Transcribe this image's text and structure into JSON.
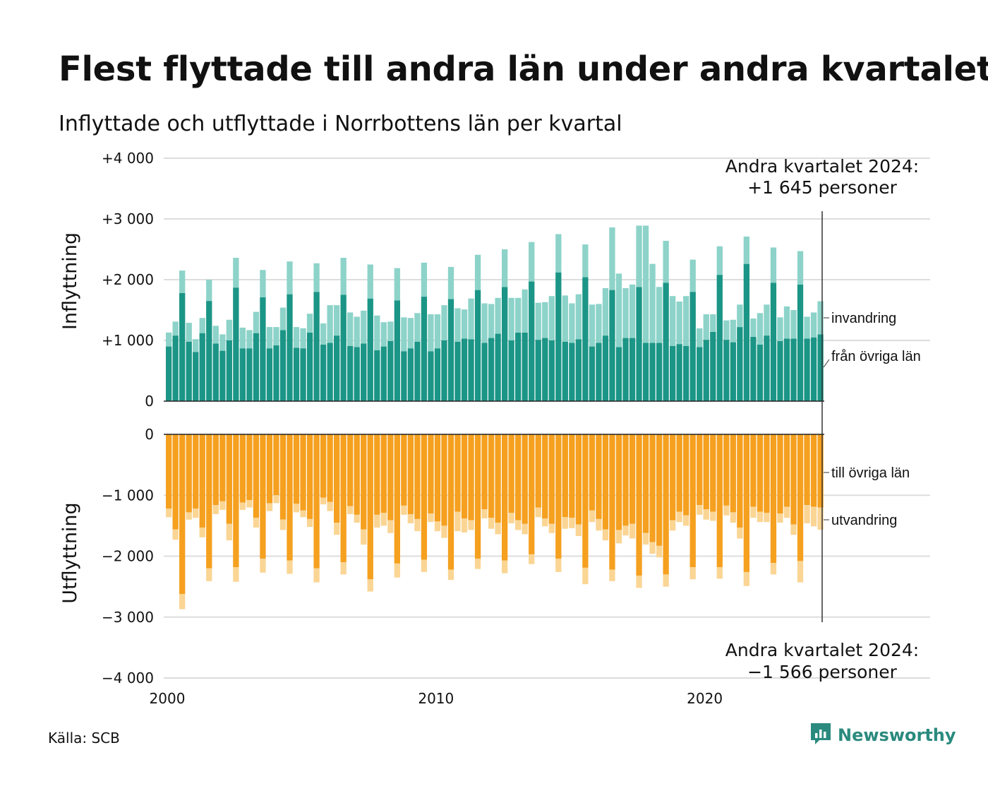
{
  "title": "Flest flyttade till andra län under andra kvartalet",
  "subtitle": "Inflyttade och utflyttade i Norrbottens län per kvartal",
  "source": "Källa: SCB",
  "brand": "Newsworthy",
  "colors": {
    "inflytt_ovriga": "#1b9586",
    "invandring": "#8dd3c9",
    "utflytt_ovriga": "#f5a01f",
    "utvandring": "#fad594",
    "gridline": "#dddddd"
  },
  "chart_data": {
    "type": "bar",
    "stacked": true,
    "x_start": "2000 Q1",
    "x_end": "2024 Q2",
    "x_ticks": [
      "2000",
      "2010",
      "2020"
    ],
    "panels": [
      {
        "axis_title": "Inflyttning",
        "ylim": [
          0,
          4000
        ],
        "y_ticks": [
          0,
          1000,
          2000,
          3000,
          4000
        ],
        "y_tick_labels": [
          "0",
          "+1 000",
          "+2 000",
          "+3 000",
          "+4 000"
        ],
        "annotation": [
          "Andra kvartalet 2024:",
          "+1 645 personer"
        ],
        "series": [
          {
            "name": "från övriga län",
            "values": [
              900,
              1080,
              1780,
              980,
              810,
              1120,
              1650,
              950,
              830,
              1000,
              1870,
              870,
              870,
              1120,
              1710,
              870,
              920,
              1170,
              1760,
              880,
              870,
              1130,
              1800,
              930,
              960,
              1080,
              1750,
              910,
              890,
              950,
              1690,
              840,
              900,
              990,
              1660,
              820,
              870,
              980,
              1720,
              820,
              870,
              1000,
              1680,
              980,
              1030,
              1020,
              1830,
              960,
              1040,
              1110,
              1880,
              1000,
              1130,
              1130,
              1970,
              1010,
              1040,
              1000,
              2120,
              980,
              960,
              1020,
              2040,
              900,
              960,
              1080,
              1830,
              890,
              1040,
              1040,
              1880,
              960,
              960,
              960,
              1950,
              910,
              940,
              910,
              1800,
              890,
              1010,
              1140,
              2080,
              1010,
              970,
              1220,
              2260,
              1060,
              930,
              1080,
              1950,
              990,
              1030,
              1030,
              1920,
              1030,
              1050,
              1100
            ]
          },
          {
            "name": "invandring",
            "values": [
              230,
              230,
              370,
              310,
              210,
              250,
              350,
              290,
              270,
              340,
              490,
              340,
              300,
              350,
              450,
              350,
              300,
              370,
              540,
              340,
              330,
              310,
              470,
              350,
              620,
              500,
              610,
              550,
              500,
              540,
              560,
              570,
              400,
              320,
              530,
              560,
              500,
              470,
              560,
              610,
              560,
              580,
              530,
              550,
              480,
              670,
              580,
              650,
              560,
              590,
              620,
              700,
              570,
              710,
              650,
              610,
              590,
              730,
              630,
              760,
              650,
              740,
              540,
              690,
              640,
              780,
              1030,
              1210,
              820,
              880,
              1010,
              1930,
              1300,
              920,
              690,
              820,
              700,
              820,
              530,
              310,
              420,
              290,
              470,
              320,
              370,
              370,
              450,
              300,
              520,
              510,
              580,
              390,
              530,
              470,
              550,
              360,
              410,
              545
            ]
          }
        ]
      },
      {
        "axis_title": "Utflyttning",
        "ylim": [
          -4000,
          0
        ],
        "y_ticks": [
          0,
          -1000,
          -2000,
          -3000,
          -4000
        ],
        "y_tick_labels": [
          "0",
          "−1 000",
          "−2 000",
          "−3 000",
          "−4 000"
        ],
        "annotation": [
          "Andra kvartalet 2024:",
          "−1 566 personer"
        ],
        "series": [
          {
            "name": "till övriga län",
            "values": [
              -1220,
              -1560,
              -2620,
              -1280,
              -1220,
              -1530,
              -2200,
              -1160,
              -1100,
              -1470,
              -2180,
              -1120,
              -1080,
              -1370,
              -2040,
              -1130,
              -1000,
              -1400,
              -2070,
              -1140,
              -1250,
              -1390,
              -2200,
              -1040,
              -1110,
              -1450,
              -2100,
              -1180,
              -1320,
              -1560,
              -2380,
              -1320,
              -1290,
              -1410,
              -2120,
              -1170,
              -1310,
              -1390,
              -2060,
              -1300,
              -1430,
              -1500,
              -2220,
              -1270,
              -1380,
              -1410,
              -2040,
              -1230,
              -1370,
              -1450,
              -2070,
              -1290,
              -1410,
              -1470,
              -1970,
              -1200,
              -1380,
              -1470,
              -2040,
              -1360,
              -1370,
              -1480,
              -2190,
              -1250,
              -1390,
              -1560,
              -2220,
              -1570,
              -1500,
              -1470,
              -2320,
              -1620,
              -1770,
              -1830,
              -2300,
              -1410,
              -1270,
              -1330,
              -2180,
              -1160,
              -1230,
              -1270,
              -2180,
              -1170,
              -1280,
              -1530,
              -2260,
              -1190,
              -1270,
              -1290,
              -2110,
              -1300,
              -1190,
              -1480,
              -2080,
              -1160,
              -1190,
              -1200
            ]
          },
          {
            "name": "utvandring",
            "values": [
              -140,
              -170,
              -250,
              -120,
              -150,
              -160,
              -210,
              -150,
              -140,
              -270,
              -240,
              -120,
              -120,
              -160,
              -230,
              -130,
              -130,
              -170,
              -220,
              -140,
              -110,
              -130,
              -230,
              -110,
              -150,
              -200,
              -200,
              -130,
              -130,
              -250,
              -200,
              -210,
              -210,
              -210,
              -230,
              -150,
              -150,
              -200,
              -200,
              -140,
              -160,
              -200,
              -170,
              -320,
              -230,
              -160,
              -170,
              -150,
              -180,
              -190,
              -210,
              -170,
              -160,
              -170,
              -160,
              -160,
              -130,
              -150,
              -220,
              -190,
              -170,
              -190,
              -270,
              -190,
              -190,
              -180,
              -190,
              -220,
              -160,
              -240,
              -200,
              -190,
              -190,
              -190,
              -200,
              -170,
              -170,
              -170,
              -200,
              -160,
              -170,
              -150,
              -190,
              -160,
              -170,
              -180,
              -230,
              -180,
              -170,
              -150,
              -190,
              -150,
              -180,
              -170,
              -350,
              -300,
              -320,
              -366
            ]
          }
        ]
      }
    ]
  }
}
